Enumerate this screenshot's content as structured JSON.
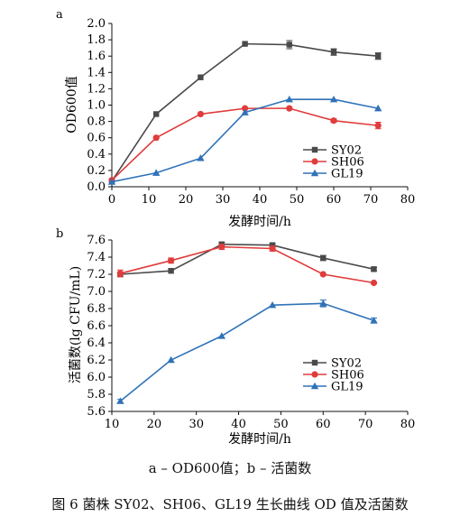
{
  "figure": {
    "caption_sub": "a – OD600值；b – 活菌数",
    "caption_main": "图 6   菌株 SY02、SH06、GL19 生长曲线 OD 值及活菌数"
  },
  "colors": {
    "SY02": "#4a4a4a",
    "SH06": "#e03c3c",
    "GL19": "#2f72b8"
  },
  "chart_data": [
    {
      "panel_label": "a",
      "type": "line",
      "xlabel": "发酵时间/h",
      "ylabel": "OD600值",
      "xlim": [
        0,
        80
      ],
      "ylim": [
        0.0,
        2.0
      ],
      "xticks": [
        0,
        10,
        20,
        30,
        40,
        50,
        60,
        70,
        80
      ],
      "yticks": [
        "0.0",
        "0.2",
        "0.4",
        "0.6",
        "0.8",
        "1.0",
        "1.2",
        "1.4",
        "1.6",
        "1.8",
        "2.0"
      ],
      "legend_position": "lower-right",
      "series": [
        {
          "name": "SY02",
          "marker": "square",
          "x": [
            0,
            12,
            24,
            36,
            48,
            60,
            72
          ],
          "y": [
            0.07,
            0.89,
            1.34,
            1.75,
            1.74,
            1.65,
            1.6
          ],
          "err": [
            0,
            0,
            0,
            0,
            0.05,
            0.04,
            0.04
          ]
        },
        {
          "name": "SH06",
          "marker": "circle",
          "x": [
            0,
            12,
            24,
            36,
            48,
            60,
            72
          ],
          "y": [
            0.08,
            0.6,
            0.89,
            0.96,
            0.96,
            0.81,
            0.75
          ],
          "err": [
            0,
            0,
            0,
            0,
            0,
            0.02,
            0.04
          ]
        },
        {
          "name": "GL19",
          "marker": "triangle",
          "x": [
            0,
            12,
            24,
            36,
            48,
            60,
            72
          ],
          "y": [
            0.06,
            0.17,
            0.35,
            0.91,
            1.07,
            1.07,
            0.96
          ],
          "err": [
            0,
            0,
            0,
            0,
            0,
            0,
            0
          ]
        }
      ]
    },
    {
      "panel_label": "b",
      "type": "line",
      "xlabel": "发酵时间/h",
      "ylabel": "活菌数(lg CFU/mL)",
      "xlim": [
        10,
        80
      ],
      "ylim": [
        5.6,
        7.6
      ],
      "xticks": [
        10,
        20,
        30,
        40,
        50,
        60,
        70,
        80
      ],
      "yticks": [
        "5.6",
        "5.8",
        "6.0",
        "6.2",
        "6.4",
        "6.6",
        "6.8",
        "7.0",
        "7.2",
        "7.4",
        "7.6"
      ],
      "legend_position": "lower-right",
      "series": [
        {
          "name": "SY02",
          "marker": "square",
          "x": [
            12,
            24,
            36,
            48,
            60,
            72
          ],
          "y": [
            7.2,
            7.24,
            7.55,
            7.54,
            7.39,
            7.26
          ],
          "err": [
            0,
            0,
            0.02,
            0.02,
            0.03,
            0.02
          ]
        },
        {
          "name": "SH06",
          "marker": "circle",
          "x": [
            12,
            24,
            36,
            48,
            60,
            72
          ],
          "y": [
            7.21,
            7.36,
            7.52,
            7.5,
            7.2,
            7.1
          ],
          "err": [
            0.04,
            0.03,
            0.03,
            0.03,
            0,
            0
          ]
        },
        {
          "name": "GL19",
          "marker": "triangle",
          "x": [
            12,
            24,
            36,
            48,
            60,
            72
          ],
          "y": [
            5.72,
            6.2,
            6.48,
            6.84,
            6.86,
            6.66
          ],
          "err": [
            0.02,
            0,
            0,
            0,
            0.04,
            0.03
          ]
        }
      ]
    }
  ]
}
